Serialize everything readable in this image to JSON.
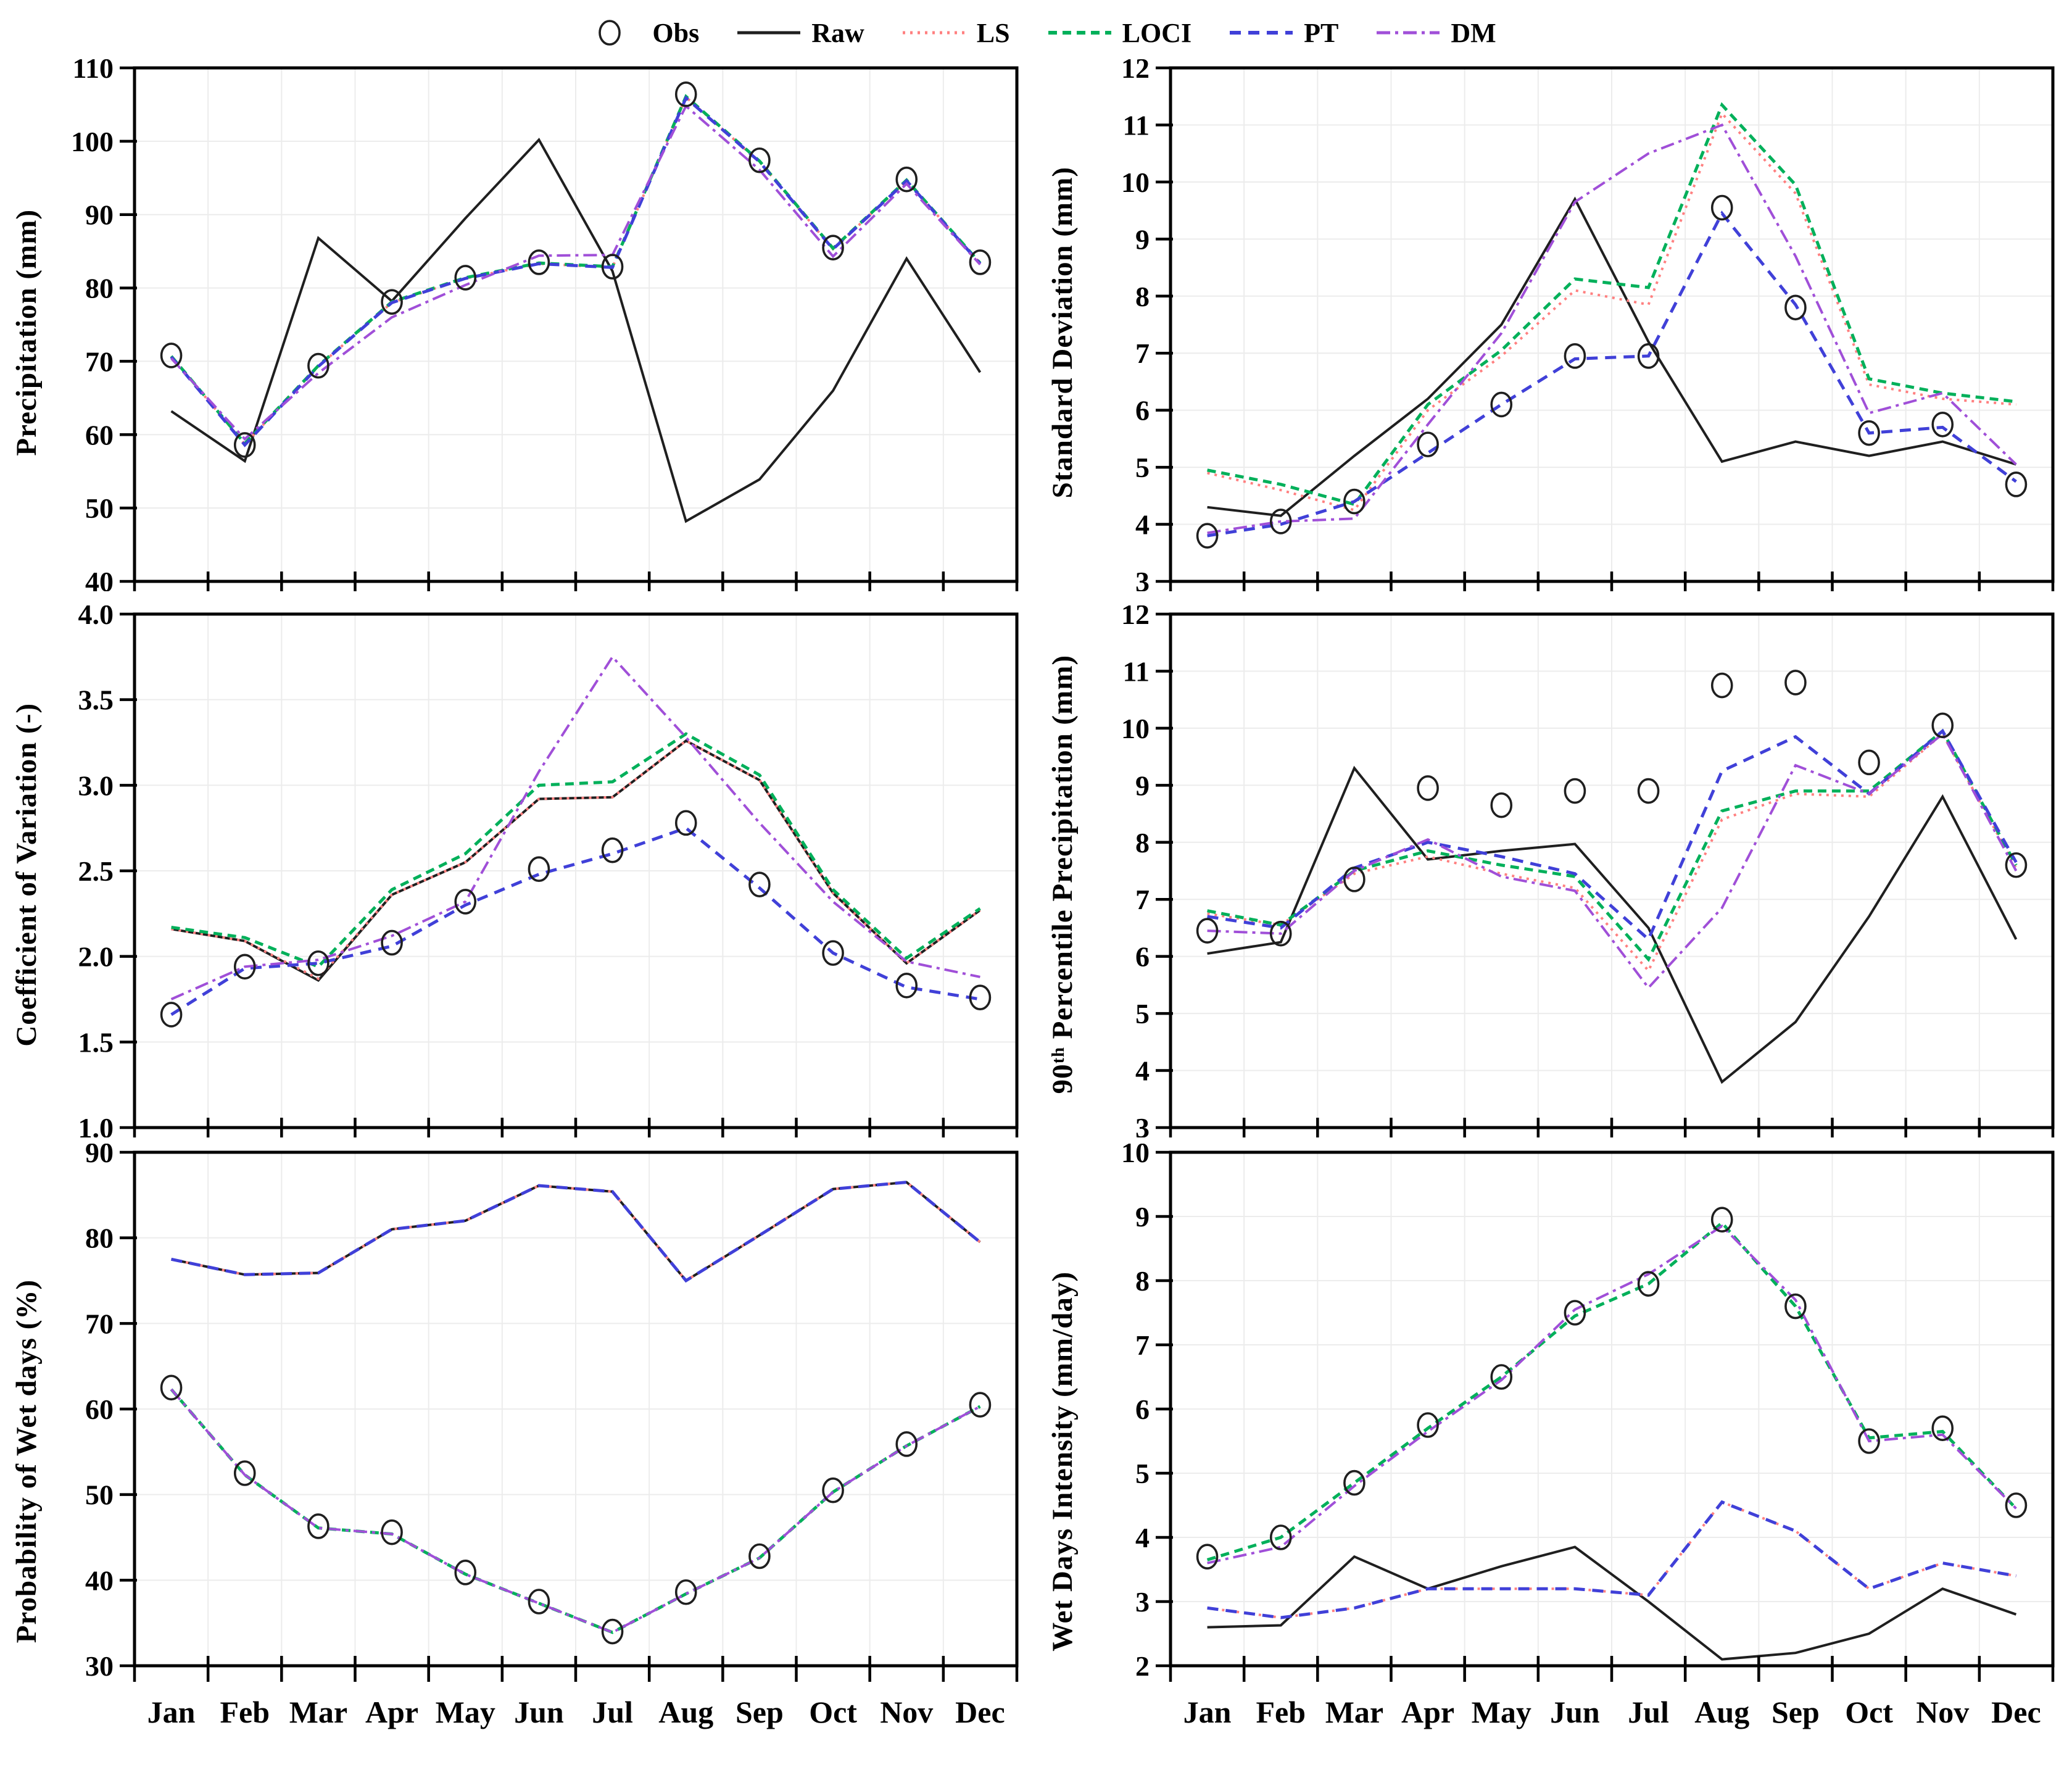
{
  "months": [
    "Jan",
    "Feb",
    "Mar",
    "Apr",
    "May",
    "Jun",
    "Jul",
    "Aug",
    "Sep",
    "Oct",
    "Nov",
    "Dec"
  ],
  "legend": {
    "items": [
      {
        "label": "Obs",
        "style": "obs"
      },
      {
        "label": "Raw",
        "style": "raw"
      },
      {
        "label": "LS",
        "style": "ls"
      },
      {
        "label": "LOCI",
        "style": "loci"
      },
      {
        "label": "PT",
        "style": "pt"
      },
      {
        "label": "DM",
        "style": "dm"
      }
    ]
  },
  "styles": {
    "raw": {
      "color": "#1f1f1f",
      "dash": "",
      "width": 4
    },
    "ls": {
      "color": "#ff8080",
      "dash": "4 8",
      "width": 4
    },
    "loci": {
      "color": "#00b05a",
      "dash": "14 9",
      "width": 5
    },
    "pt": {
      "color": "#4040d8",
      "dash": "18 12",
      "width": 5
    },
    "dm": {
      "color": "#a04fd8",
      "dash": "22 8 5 8",
      "width": 4
    },
    "obs": {
      "color": "#1f1f1f",
      "width": 3.6,
      "rx": 16,
      "ry": 19
    }
  },
  "chart_data": [
    {
      "type": "line",
      "title": "Precipitation (mm)",
      "xlabel": "",
      "ylabel": "Precipitation (mm)",
      "categories": [
        "Jan",
        "Feb",
        "Mar",
        "Apr",
        "May",
        "Jun",
        "Jul",
        "Aug",
        "Sep",
        "Oct",
        "Nov",
        "Dec"
      ],
      "ylim": [
        40,
        110
      ],
      "ystep": 10,
      "ydec": 0,
      "grid": true,
      "legend_position": "top",
      "series": [
        {
          "name": "Raw",
          "style": "raw",
          "values": [
            63.2,
            56.4,
            86.8,
            78.2,
            89.5,
            100.2,
            82.3,
            48.2,
            53.9,
            66.0,
            84.0,
            68.5
          ]
        },
        {
          "name": "LS",
          "style": "ls",
          "values": [
            70.7,
            58.7,
            69.3,
            78.0,
            81.3,
            83.3,
            82.8,
            106.0,
            97.2,
            85.3,
            94.6,
            83.4
          ]
        },
        {
          "name": "LOCI",
          "style": "loci",
          "values": [
            70.7,
            58.8,
            69.4,
            78.1,
            81.4,
            83.4,
            82.9,
            106.1,
            97.3,
            85.4,
            94.7,
            83.4
          ]
        },
        {
          "name": "PT",
          "style": "pt",
          "values": [
            70.6,
            58.6,
            69.3,
            78.0,
            81.3,
            83.3,
            82.8,
            105.9,
            97.2,
            85.3,
            94.6,
            83.3
          ]
        },
        {
          "name": "DM",
          "style": "dm",
          "values": [
            70.4,
            59.4,
            68.4,
            76.0,
            80.4,
            84.4,
            84.5,
            104.8,
            96.1,
            84.3,
            94.2,
            83.2
          ]
        },
        {
          "name": "Obs",
          "style": "obs",
          "markers": true,
          "values": [
            70.8,
            58.6,
            69.4,
            78.1,
            81.4,
            83.5,
            82.9,
            106.4,
            97.4,
            85.5,
            94.8,
            83.5
          ]
        }
      ]
    },
    {
      "type": "line",
      "title": "Standard  Deviation (mm)",
      "xlabel": "",
      "ylabel": "Standard Deviation (mm)",
      "categories": [
        "Jan",
        "Feb",
        "Mar",
        "Apr",
        "May",
        "Jun",
        "Jul",
        "Aug",
        "Sep",
        "Oct",
        "Nov",
        "Dec"
      ],
      "ylim": [
        3,
        12
      ],
      "ystep": 1,
      "ydec": 0,
      "grid": true,
      "series": [
        {
          "name": "Raw",
          "style": "raw",
          "values": [
            4.3,
            4.15,
            5.2,
            6.2,
            7.5,
            9.7,
            7.2,
            5.1,
            5.45,
            5.2,
            5.45,
            5.05
          ]
        },
        {
          "name": "LS",
          "style": "ls",
          "values": [
            4.9,
            4.6,
            4.25,
            6.0,
            6.95,
            8.1,
            7.85,
            11.2,
            9.8,
            6.45,
            6.2,
            6.1
          ]
        },
        {
          "name": "LOCI",
          "style": "loci",
          "values": [
            4.95,
            4.7,
            4.35,
            6.1,
            7.05,
            8.3,
            8.15,
            11.35,
            9.95,
            6.55,
            6.3,
            6.15
          ]
        },
        {
          "name": "PT",
          "style": "pt",
          "values": [
            3.8,
            4.0,
            4.4,
            5.25,
            6.1,
            6.9,
            6.95,
            9.45,
            7.85,
            5.6,
            5.7,
            4.75
          ]
        },
        {
          "name": "DM",
          "style": "dm",
          "values": [
            3.85,
            4.05,
            4.1,
            5.75,
            7.35,
            9.65,
            10.5,
            11.0,
            8.7,
            5.95,
            6.3,
            5.05
          ]
        },
        {
          "name": "Obs",
          "style": "obs",
          "markers": true,
          "values": [
            3.8,
            4.05,
            4.4,
            5.4,
            6.1,
            6.95,
            6.95,
            9.55,
            7.8,
            5.6,
            5.75,
            4.7
          ]
        }
      ]
    },
    {
      "type": "line",
      "title": "Coefficient  of  Variation (-)",
      "xlabel": "",
      "ylabel": "Coefficient of Variation (-)",
      "categories": [
        "Jan",
        "Feb",
        "Mar",
        "Apr",
        "May",
        "Jun",
        "Jul",
        "Aug",
        "Sep",
        "Oct",
        "Nov",
        "Dec"
      ],
      "ylim": [
        1.0,
        4.0
      ],
      "ystep": 0.5,
      "ydec": 1,
      "grid": true,
      "series": [
        {
          "name": "Raw",
          "style": "raw",
          "values": [
            2.16,
            2.09,
            1.86,
            2.36,
            2.55,
            2.92,
            2.93,
            3.26,
            3.03,
            2.37,
            1.96,
            2.27
          ]
        },
        {
          "name": "LS",
          "style": "ls",
          "values": [
            2.16,
            2.09,
            1.87,
            2.36,
            2.55,
            2.92,
            2.93,
            3.26,
            3.03,
            2.37,
            1.96,
            2.27
          ]
        },
        {
          "name": "LOCI",
          "style": "loci",
          "values": [
            2.17,
            2.11,
            1.94,
            2.39,
            2.6,
            3.0,
            3.02,
            3.3,
            3.06,
            2.39,
            1.99,
            2.28
          ]
        },
        {
          "name": "PT",
          "style": "pt",
          "values": [
            1.66,
            1.93,
            1.96,
            2.06,
            2.3,
            2.48,
            2.6,
            2.75,
            2.4,
            2.02,
            1.82,
            1.75
          ]
        },
        {
          "name": "DM",
          "style": "dm",
          "values": [
            1.75,
            1.94,
            1.98,
            2.12,
            2.32,
            3.08,
            3.75,
            3.28,
            2.78,
            2.32,
            1.97,
            1.88
          ]
        },
        {
          "name": "Obs",
          "style": "obs",
          "markers": true,
          "values": [
            1.66,
            1.94,
            1.96,
            2.08,
            2.32,
            2.51,
            2.62,
            2.78,
            2.42,
            2.02,
            1.83,
            1.76
          ]
        }
      ]
    },
    {
      "type": "line",
      "title": "90ᵗʰ Percentile Precipitation (mm)",
      "xlabel": "",
      "ylabel": "90th Percentile Precipitation (mm)",
      "categories": [
        "Jan",
        "Feb",
        "Mar",
        "Apr",
        "May",
        "Jun",
        "Jul",
        "Aug",
        "Sep",
        "Oct",
        "Nov",
        "Dec"
      ],
      "ylim": [
        3,
        12
      ],
      "ystep": 1,
      "ydec": 0,
      "grid": true,
      "series": [
        {
          "name": "Raw",
          "style": "raw",
          "values": [
            6.05,
            6.25,
            9.3,
            7.7,
            7.85,
            7.97,
            6.5,
            3.8,
            4.85,
            6.7,
            8.8,
            6.3
          ]
        },
        {
          "name": "LS",
          "style": "ls",
          "values": [
            6.75,
            6.55,
            7.45,
            7.75,
            7.45,
            7.2,
            5.75,
            8.4,
            8.85,
            8.8,
            9.9,
            7.55
          ]
        },
        {
          "name": "LOCI",
          "style": "loci",
          "values": [
            6.8,
            6.55,
            7.5,
            7.85,
            7.6,
            7.4,
            5.95,
            8.55,
            8.9,
            8.9,
            9.95,
            7.6
          ]
        },
        {
          "name": "PT",
          "style": "pt",
          "values": [
            6.7,
            6.5,
            7.55,
            8.0,
            7.75,
            7.45,
            6.3,
            9.25,
            9.85,
            8.85,
            9.95,
            7.65
          ]
        },
        {
          "name": "DM",
          "style": "dm",
          "values": [
            6.45,
            6.4,
            7.5,
            8.05,
            7.4,
            7.15,
            5.45,
            6.85,
            9.35,
            8.85,
            9.9,
            7.5
          ]
        },
        {
          "name": "Obs",
          "style": "obs",
          "markers": true,
          "values": [
            6.45,
            6.4,
            7.35,
            8.95,
            8.65,
            8.9,
            8.9,
            10.75,
            10.8,
            9.4,
            10.05,
            7.6
          ]
        }
      ]
    },
    {
      "type": "line",
      "title": "Probability  of  Wet days (%)",
      "xlabel": "",
      "ylabel": "Probability of Wet days (%)",
      "categories": [
        "Jan",
        "Feb",
        "Mar",
        "Apr",
        "May",
        "Jun",
        "Jul",
        "Aug",
        "Sep",
        "Oct",
        "Nov",
        "Dec"
      ],
      "ylim": [
        30,
        90
      ],
      "ystep": 10,
      "ydec": 0,
      "grid": true,
      "show_xlabels": true,
      "series": [
        {
          "name": "Raw",
          "style": "raw",
          "values": [
            77.5,
            75.7,
            75.9,
            81.0,
            82.0,
            86.1,
            85.4,
            75.0,
            80.3,
            85.7,
            86.5,
            79.5
          ]
        },
        {
          "name": "LS",
          "style": "ls",
          "values": [
            77.5,
            75.7,
            75.9,
            81.0,
            82.0,
            86.1,
            85.4,
            75.0,
            80.3,
            85.7,
            86.5,
            79.5
          ]
        },
        {
          "name": "LOCI",
          "style": "loci",
          "values": [
            62.3,
            52.3,
            46.1,
            45.4,
            40.7,
            37.3,
            33.9,
            38.4,
            42.6,
            50.3,
            55.7,
            60.3
          ]
        },
        {
          "name": "PT",
          "style": "pt",
          "values": [
            77.5,
            75.7,
            75.9,
            81.0,
            82.0,
            86.1,
            85.4,
            75.0,
            80.3,
            85.7,
            86.5,
            79.5
          ]
        },
        {
          "name": "DM",
          "style": "dm",
          "values": [
            62.3,
            52.3,
            46.1,
            45.4,
            40.7,
            37.3,
            33.9,
            38.4,
            42.6,
            50.3,
            55.7,
            60.3
          ]
        },
        {
          "name": "Obs",
          "style": "obs",
          "markers": true,
          "values": [
            62.5,
            52.5,
            46.3,
            45.6,
            40.9,
            37.5,
            34.0,
            38.6,
            42.8,
            50.5,
            55.9,
            60.5
          ]
        }
      ]
    },
    {
      "type": "line",
      "title": "Wet Days Intensity  (mm/day)",
      "xlabel": "",
      "ylabel": "Wet Days Intensity (mm/day)",
      "categories": [
        "Jan",
        "Feb",
        "Mar",
        "Apr",
        "May",
        "Jun",
        "Jul",
        "Aug",
        "Sep",
        "Oct",
        "Nov",
        "Dec"
      ],
      "ylim": [
        2,
        10
      ],
      "ystep": 1,
      "ydec": 0,
      "grid": true,
      "show_xlabels": true,
      "series": [
        {
          "name": "Raw",
          "style": "raw",
          "values": [
            2.6,
            2.63,
            3.7,
            3.2,
            3.55,
            3.85,
            3.0,
            2.1,
            2.2,
            2.5,
            3.2,
            2.8
          ]
        },
        {
          "name": "LS",
          "style": "ls",
          "values": [
            2.9,
            2.75,
            2.9,
            3.2,
            3.2,
            3.2,
            3.1,
            4.55,
            4.1,
            3.2,
            3.6,
            3.4
          ]
        },
        {
          "name": "LOCI",
          "style": "loci",
          "values": [
            3.65,
            4.0,
            4.85,
            5.7,
            6.5,
            7.45,
            7.95,
            8.9,
            7.6,
            5.55,
            5.65,
            4.45
          ]
        },
        {
          "name": "PT",
          "style": "pt",
          "values": [
            2.9,
            2.75,
            2.9,
            3.2,
            3.2,
            3.2,
            3.1,
            4.55,
            4.1,
            3.2,
            3.6,
            3.4
          ]
        },
        {
          "name": "DM",
          "style": "dm",
          "values": [
            3.6,
            3.85,
            4.8,
            5.65,
            6.45,
            7.55,
            8.1,
            8.85,
            7.7,
            5.5,
            5.6,
            4.45
          ]
        },
        {
          "name": "Obs",
          "style": "obs",
          "markers": true,
          "values": [
            3.7,
            4.0,
            4.85,
            5.75,
            6.5,
            7.5,
            7.95,
            8.95,
            7.6,
            5.5,
            5.7,
            4.5
          ]
        }
      ]
    }
  ]
}
